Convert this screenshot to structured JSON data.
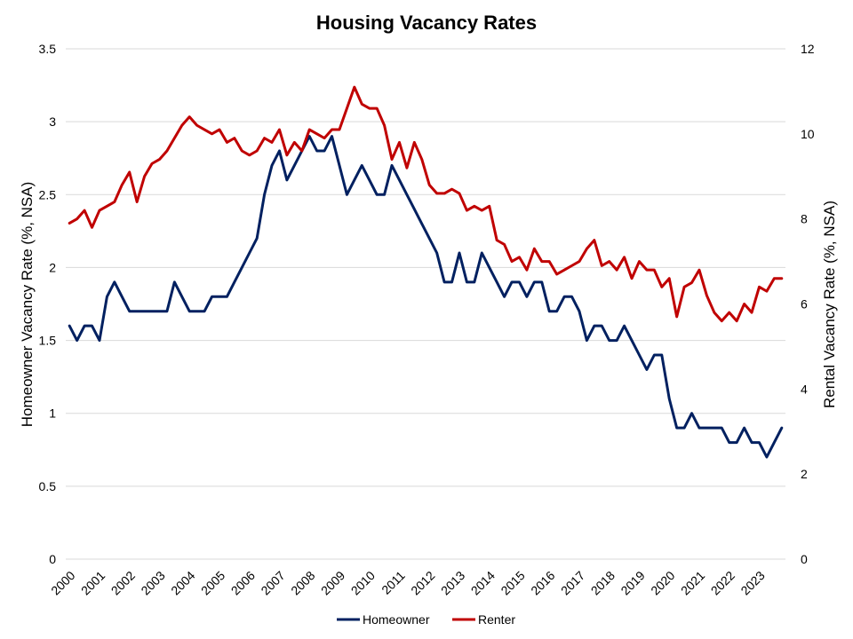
{
  "chart_data": {
    "type": "line",
    "title": "Housing Vacancy Rates",
    "x_tick_labels": [
      "2000",
      "2001",
      "2002",
      "2003",
      "2004",
      "2005",
      "2006",
      "2007",
      "2008",
      "2009",
      "2010",
      "2011",
      "2012",
      "2013",
      "2014",
      "2015",
      "2016",
      "2017",
      "2018",
      "2019",
      "2020",
      "2021",
      "2022",
      "2023"
    ],
    "y_left": {
      "label": "Homeowner Vacancy Rate (%, NSA)",
      "range": [
        0,
        3.5
      ],
      "ticks": [
        "0",
        "0.5",
        "1",
        "1.5",
        "2",
        "2.5",
        "3",
        "3.5"
      ]
    },
    "y_right": {
      "label": "Rental Vacancy Rate (%, NSA)",
      "range": [
        0,
        12
      ],
      "ticks": [
        "0",
        "2",
        "4",
        "6",
        "8",
        "10",
        "12"
      ]
    },
    "grid": true,
    "legend_position": "bottom",
    "x_start": 2000,
    "points_per_year": 4,
    "series": [
      {
        "name": "Homeowner",
        "axis": "left",
        "color": "#002060",
        "values": [
          1.6,
          1.5,
          1.6,
          1.6,
          1.5,
          1.8,
          1.9,
          1.8,
          1.7,
          1.7,
          1.7,
          1.7,
          1.7,
          1.7,
          1.9,
          1.8,
          1.7,
          1.7,
          1.7,
          1.8,
          1.8,
          1.8,
          1.9,
          2.0,
          2.1,
          2.2,
          2.5,
          2.7,
          2.8,
          2.6,
          2.7,
          2.8,
          2.9,
          2.8,
          2.8,
          2.9,
          2.7,
          2.5,
          2.6,
          2.7,
          2.6,
          2.5,
          2.5,
          2.7,
          2.6,
          2.5,
          2.4,
          2.3,
          2.2,
          2.1,
          1.9,
          1.9,
          2.1,
          1.9,
          1.9,
          2.1,
          2.0,
          1.9,
          1.8,
          1.9,
          1.9,
          1.8,
          1.9,
          1.9,
          1.7,
          1.7,
          1.8,
          1.8,
          1.7,
          1.5,
          1.6,
          1.6,
          1.5,
          1.5,
          1.6,
          1.5,
          1.4,
          1.3,
          1.4,
          1.4,
          1.1,
          0.9,
          0.9,
          1.0,
          0.9,
          0.9,
          0.9,
          0.9,
          0.8,
          0.8,
          0.9,
          0.8,
          0.8,
          0.7,
          0.8,
          0.9
        ]
      },
      {
        "name": "Renter",
        "axis": "right",
        "color": "#c00000",
        "values": [
          7.9,
          8.0,
          8.2,
          7.8,
          8.2,
          8.3,
          8.4,
          8.8,
          9.1,
          8.4,
          9.0,
          9.3,
          9.4,
          9.6,
          9.9,
          10.2,
          10.4,
          10.2,
          10.1,
          10.0,
          10.1,
          9.8,
          9.9,
          9.6,
          9.5,
          9.6,
          9.9,
          9.8,
          10.1,
          9.5,
          9.8,
          9.6,
          10.1,
          10.0,
          9.9,
          10.1,
          10.1,
          10.6,
          11.1,
          10.7,
          10.6,
          10.6,
          10.2,
          9.4,
          9.8,
          9.2,
          9.8,
          9.4,
          8.8,
          8.6,
          8.6,
          8.7,
          8.6,
          8.2,
          8.3,
          8.2,
          8.3,
          7.5,
          7.4,
          7.0,
          7.1,
          6.8,
          7.3,
          7.0,
          7.0,
          6.7,
          6.8,
          6.9,
          7.0,
          7.3,
          7.5,
          6.9,
          7.0,
          6.8,
          7.1,
          6.6,
          7.0,
          6.8,
          6.8,
          6.4,
          6.6,
          5.7,
          6.4,
          6.5,
          6.8,
          6.2,
          5.8,
          5.6,
          5.8,
          5.6,
          6.0,
          5.8,
          6.4,
          6.3,
          6.6,
          6.6
        ]
      }
    ]
  }
}
